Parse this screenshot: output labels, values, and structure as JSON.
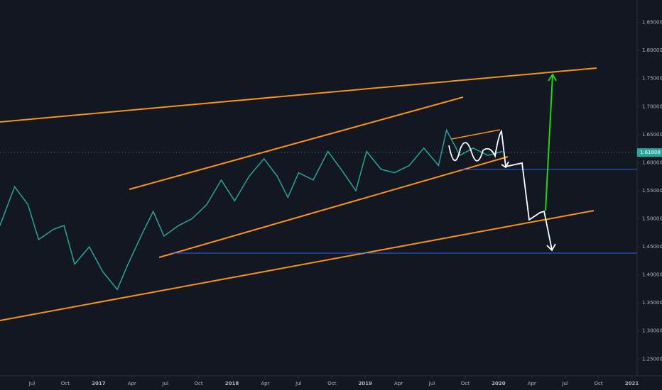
{
  "chart_data": {
    "type": "line",
    "x": [
      2016.26,
      2016.37,
      2016.47,
      2016.55,
      2016.66,
      2016.74,
      2016.82,
      2016.93,
      2017.03,
      2017.14,
      2017.22,
      2017.33,
      2017.41,
      2017.49,
      2017.6,
      2017.7,
      2017.81,
      2017.92,
      2018.02,
      2018.13,
      2018.24,
      2018.34,
      2018.42,
      2018.5,
      2018.61,
      2018.72,
      2018.82,
      2018.93,
      2019.01,
      2019.12,
      2019.22,
      2019.33,
      2019.44,
      2019.55,
      2019.61,
      2019.71,
      2019.81,
      2019.92,
      2020.03
    ],
    "series": [
      {
        "color": "#26a69a",
        "values": [
          1.488,
          1.557,
          1.525,
          1.463,
          1.481,
          1.488,
          1.419,
          1.45,
          1.406,
          1.374,
          1.419,
          1.475,
          1.513,
          1.469,
          1.488,
          1.5,
          1.525,
          1.569,
          1.532,
          1.576,
          1.607,
          1.576,
          1.538,
          1.582,
          1.569,
          1.62,
          1.588,
          1.55,
          1.62,
          1.588,
          1.582,
          1.595,
          1.626,
          1.595,
          1.658,
          1.613,
          1.626,
          1.613,
          1.62
        ]
      }
    ],
    "last_price": 1.61808,
    "xlim": [
      2016.26,
      2021.04
    ],
    "ylim": [
      1.22,
      1.89
    ],
    "yticks": [
      {
        "value": 1.25,
        "label": "1.25000"
      },
      {
        "value": 1.3,
        "label": "1.30000"
      },
      {
        "value": 1.35,
        "label": "1.35000"
      },
      {
        "value": 1.4,
        "label": "1.40000"
      },
      {
        "value": 1.45,
        "label": "1.45000"
      },
      {
        "value": 1.5,
        "label": "1.50000"
      },
      {
        "value": 1.55,
        "label": "1.55000"
      },
      {
        "value": 1.6,
        "label": "1.60000"
      },
      {
        "value": 1.65,
        "label": "1.65000"
      },
      {
        "value": 1.7,
        "label": "1.70000"
      },
      {
        "value": 1.75,
        "label": "1.75000"
      },
      {
        "value": 1.8,
        "label": "1.80000"
      },
      {
        "value": 1.85,
        "label": "1.85000"
      }
    ],
    "xticks": [
      {
        "value": 2016.5,
        "label": "Jul"
      },
      {
        "value": 2016.75,
        "label": "Oct"
      },
      2017,
      {
        "value": 2017.25,
        "label": "Apr"
      },
      {
        "value": 2017.5,
        "label": "Jul"
      },
      {
        "value": 2017.75,
        "label": "Oct"
      },
      2018,
      {
        "value": 2018.25,
        "label": "Apr"
      },
      {
        "value": 2018.5,
        "label": "Jul"
      },
      {
        "value": 2018.75,
        "label": "Oct"
      },
      2019,
      {
        "value": 2019.25,
        "label": "Apr"
      },
      {
        "value": 2019.5,
        "label": "Jul"
      },
      {
        "value": 2019.75,
        "label": "Oct"
      },
      2020,
      {
        "value": 2020.25,
        "label": "Apr"
      },
      {
        "value": 2020.5,
        "label": "Jul"
      },
      {
        "value": 2020.75,
        "label": "Oct"
      },
      2021
    ]
  }
}
